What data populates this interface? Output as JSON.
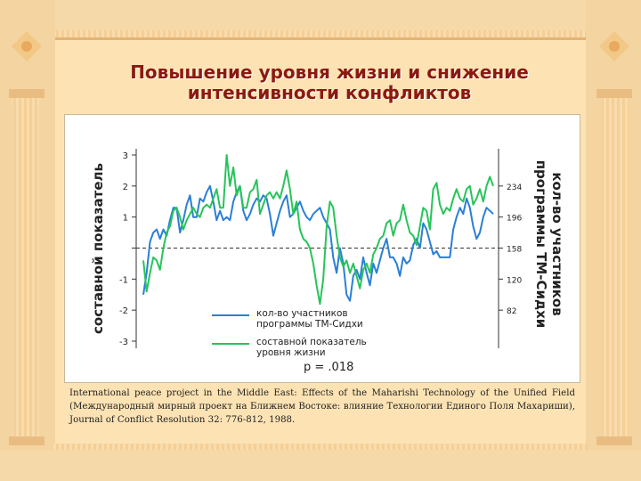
{
  "slide": {
    "title_line1": "Повышение уровня жизни и снижение",
    "title_line2": "интенсивности конфликтов",
    "citation": "International peace project in the Middle East: Effects of the Maharishi Technology of the Unified Field (Международный мирный проект на Ближнем Востоке: влияние Технологии Единого Поля Махариши), Journal of Conflict Resolution 32: 776-812, 1988.",
    "colors": {
      "background": "#fde3b4",
      "frame": "#f3c98d",
      "title": "#8a1a10"
    }
  },
  "chart_data": {
    "type": "line",
    "ylabel_left": "составной показатель",
    "ylabel_right": "кол-во участников программы ТМ-Сидхи",
    "y_left_ticks": [
      3,
      2,
      1,
      0,
      -1,
      -2,
      -3
    ],
    "y_left_tick_labels": [
      "3",
      "2",
      "1",
      "",
      "-1",
      "-2",
      "-3"
    ],
    "ylim_left": [
      -3,
      3
    ],
    "y_right_ticks": [
      234,
      196,
      158,
      120,
      82
    ],
    "ylim_right": [
      44,
      272
    ],
    "legend": [
      {
        "label_line1": "кол-во участников",
        "label_line2": "программы ТМ-Сидхи",
        "color": "#2a7fd6"
      },
      {
        "label_line1": "составной показатель",
        "label_line2": "уровня жизни",
        "color": "#27c45a"
      }
    ],
    "annotation": "p = .018",
    "grid": false,
    "legend_position": "bottom-center",
    "series": [
      {
        "color": "#2a7fd6",
        "values": [
          -1.5,
          -0.8,
          0.2,
          0.5,
          0.6,
          0.3,
          0.6,
          0.4,
          0.9,
          1.3,
          1.3,
          0.5,
          0.9,
          1.4,
          1.7,
          1.0,
          1.0,
          1.6,
          1.5,
          1.8,
          2.0,
          1.5,
          0.9,
          1.2,
          0.9,
          1.0,
          0.9,
          1.5,
          1.8,
          2.0,
          1.2,
          0.9,
          1.1,
          1.4,
          1.6,
          1.5,
          1.7,
          1.6,
          1.1,
          0.4,
          0.8,
          1.2,
          1.5,
          1.7,
          1.0,
          1.1,
          1.3,
          1.5,
          1.2,
          1.0,
          0.9,
          1.1,
          1.2,
          1.3,
          1.0,
          0.8,
          0.6,
          -0.3,
          -0.8,
          0.0,
          -0.5,
          -1.5,
          -1.7,
          -0.9,
          -0.7,
          -1.0,
          -0.3,
          -0.8,
          -1.2,
          -0.5,
          -0.8,
          -0.4,
          0.0,
          0.3,
          -0.3,
          -0.3,
          -0.5,
          -0.9,
          -0.3,
          -0.5,
          -0.4,
          0.1,
          0.3,
          0.0,
          0.8,
          0.6,
          0.2,
          -0.2,
          -0.1,
          -0.3,
          -0.3,
          -0.3,
          -0.3,
          0.6,
          1.0,
          1.3,
          1.1,
          1.6,
          1.3,
          0.7,
          0.3,
          0.5,
          1.0,
          1.3,
          1.2,
          1.1
        ]
      },
      {
        "color": "#27c45a",
        "values": [
          -0.4,
          -1.4,
          -0.8,
          -0.3,
          -0.4,
          -0.7,
          0.0,
          0.5,
          0.7,
          1.2,
          1.3,
          1.0,
          0.6,
          0.9,
          1.1,
          1.3,
          1.1,
          1.0,
          1.3,
          1.4,
          1.3,
          1.6,
          1.9,
          1.3,
          1.3,
          3.0,
          2.0,
          2.6,
          1.7,
          2.0,
          1.3,
          1.3,
          1.8,
          1.9,
          2.2,
          1.1,
          1.4,
          1.7,
          1.8,
          1.6,
          1.8,
          1.6,
          2.0,
          2.5,
          1.9,
          1.1,
          1.5,
          0.6,
          0.3,
          0.2,
          0.0,
          -0.5,
          -1.2,
          -1.8,
          -1.0,
          0.7,
          1.5,
          1.3,
          0.4,
          -0.3,
          -0.6,
          -0.4,
          -0.8,
          -0.5,
          -0.9,
          -1.3,
          -0.7,
          -0.5,
          -0.8,
          -0.2,
          0.0,
          0.3,
          0.4,
          0.8,
          0.9,
          0.4,
          0.8,
          0.9,
          1.4,
          0.9,
          0.5,
          0.4,
          0.1,
          0.7,
          1.3,
          1.2,
          0.6,
          1.9,
          2.1,
          1.4,
          1.1,
          1.3,
          1.2,
          1.6,
          1.9,
          1.6,
          1.5,
          1.9,
          2.0,
          1.4,
          1.6,
          1.9,
          1.5,
          2.0,
          2.3,
          2.0
        ]
      }
    ]
  }
}
